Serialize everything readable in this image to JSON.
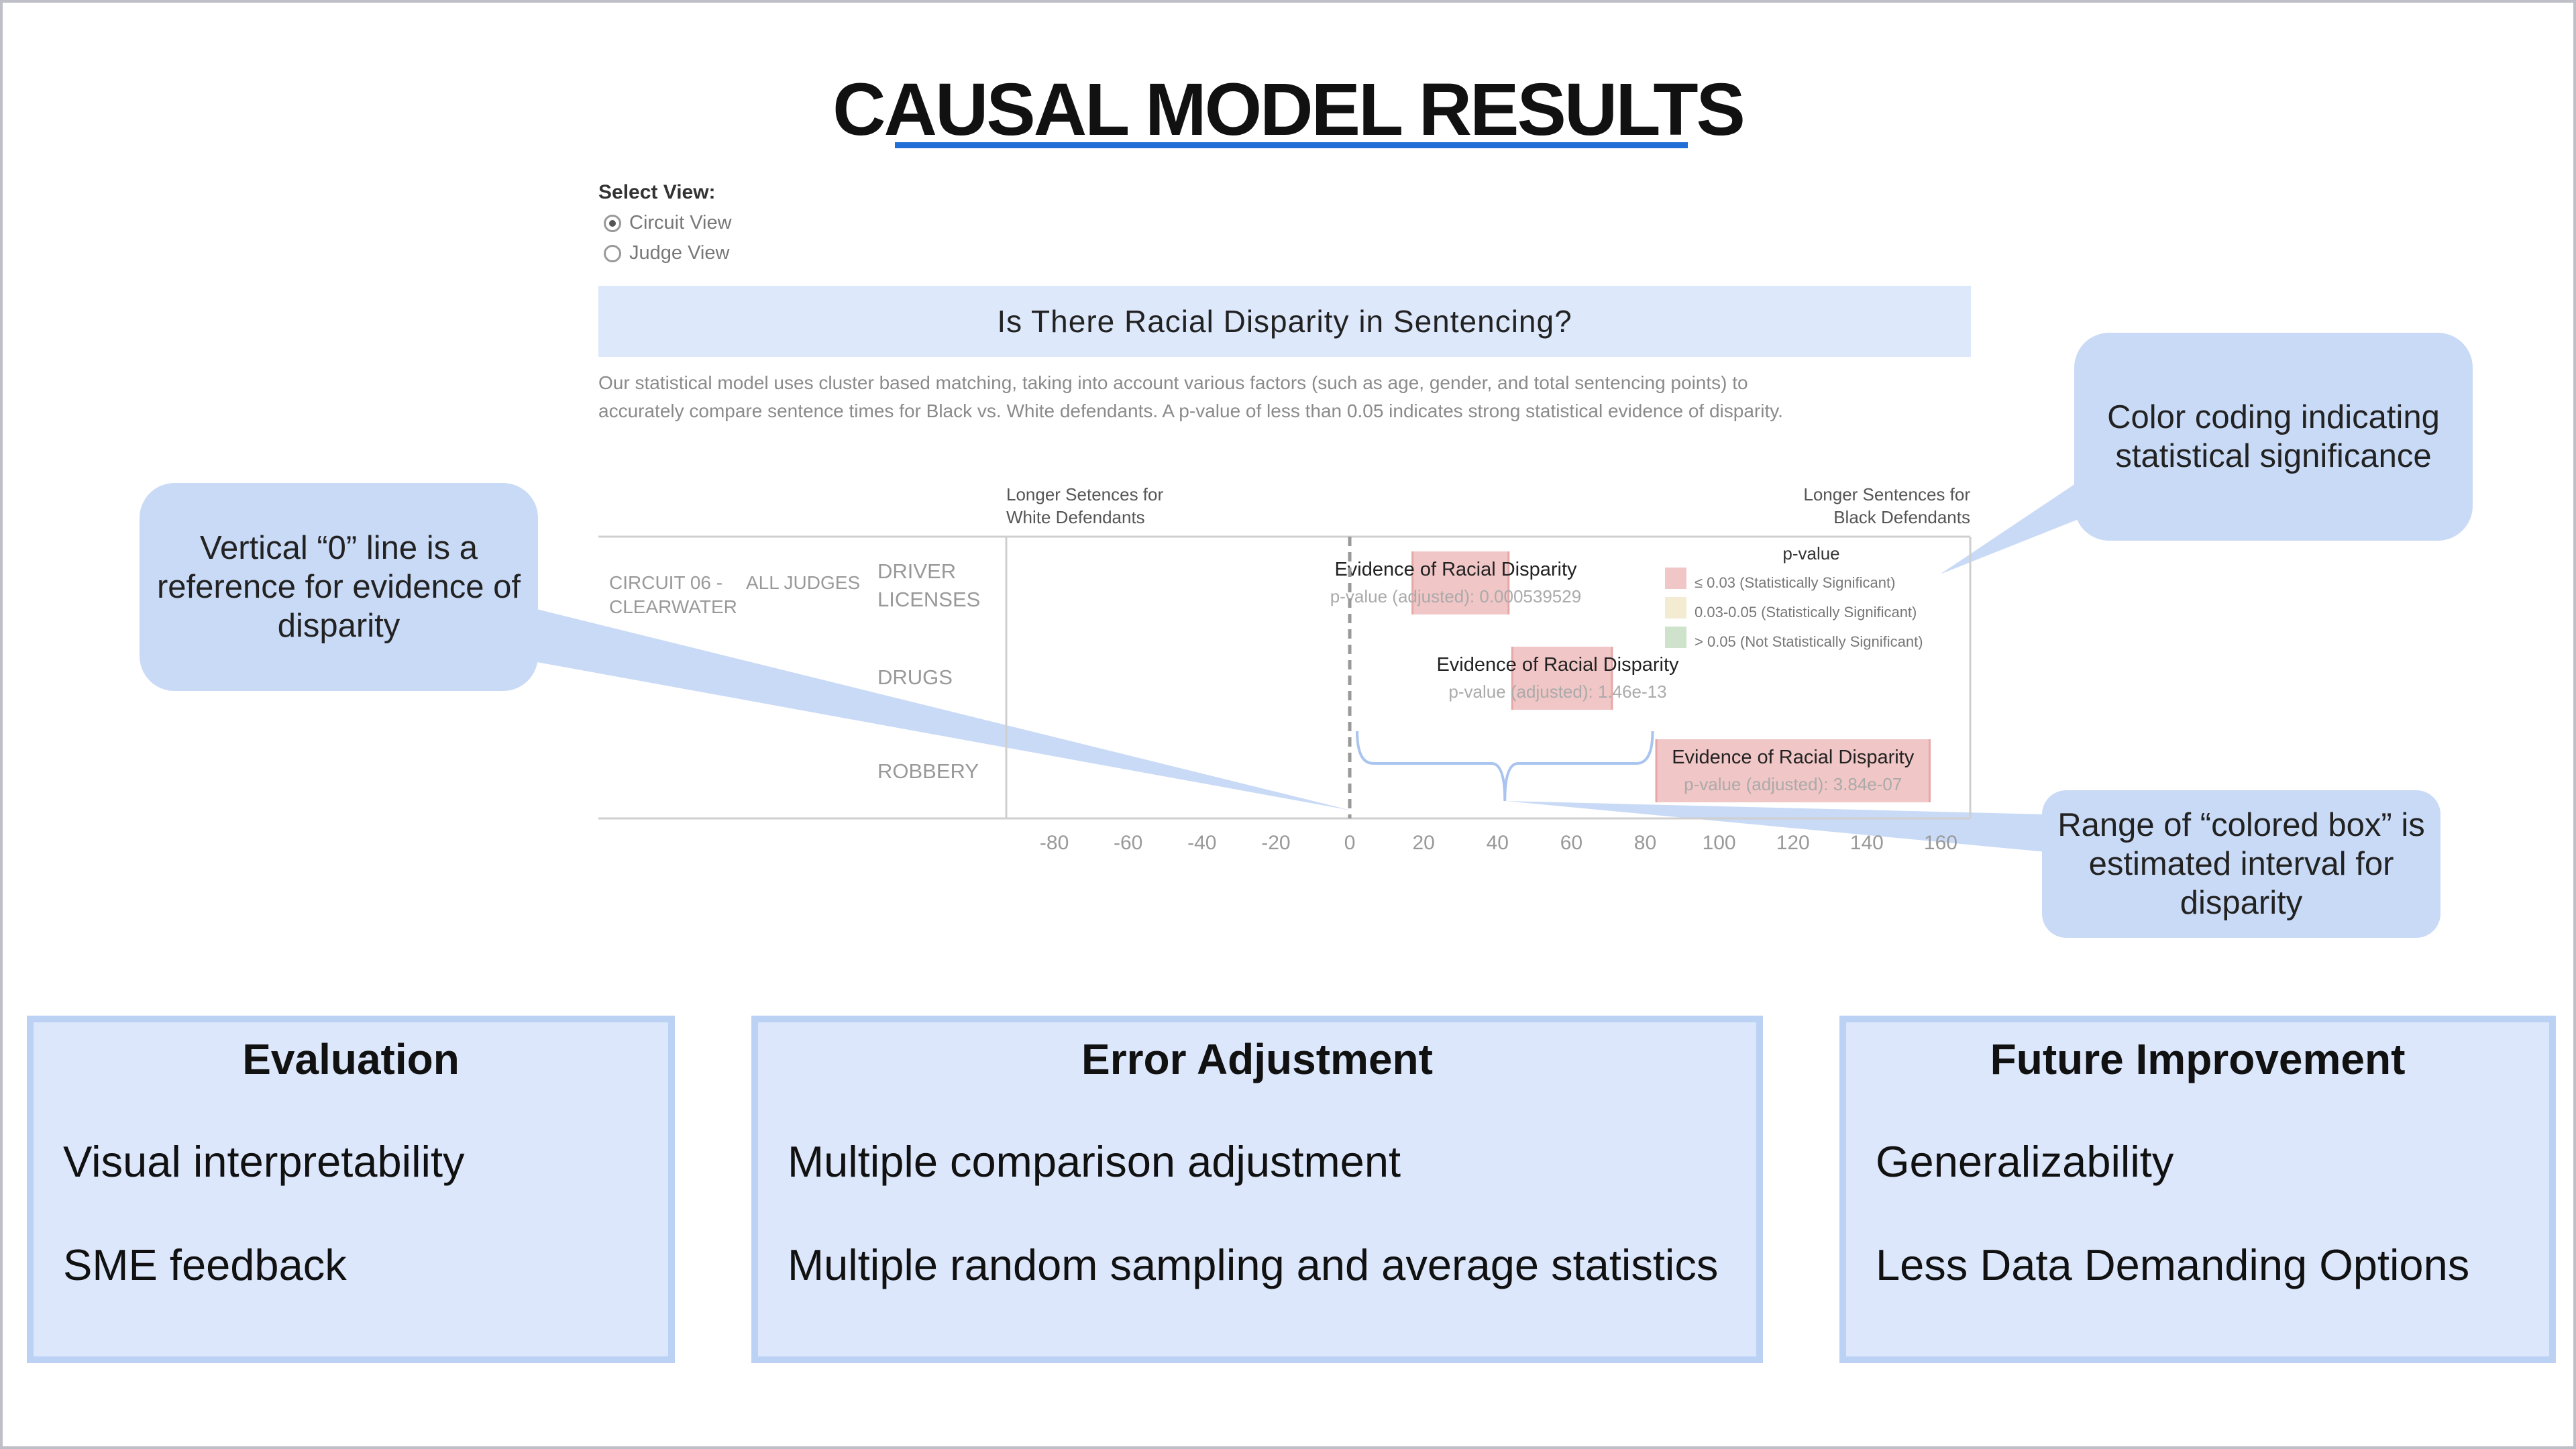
{
  "slide": {
    "title": "CAUSAL MODEL RESULTS"
  },
  "view_selector": {
    "label": "Select View:",
    "options": [
      {
        "label": "Circuit View",
        "selected": true
      },
      {
        "label": "Judge View",
        "selected": false
      }
    ]
  },
  "banner": {
    "text": "Is There Racial Disparity in Sentencing?"
  },
  "description": {
    "line1": "Our statistical model uses cluster based matching, taking into account various factors (such as age, gender, and total sentencing points) to",
    "line2": "accurately compare sentence times for Black vs. White defendants. A p-value of less than 0.05 indicates strong statistical evidence of disparity."
  },
  "callouts": {
    "zero_line": "Vertical “0” line is a reference for evidence of disparity",
    "color_coding": "Color coding indicating statistical significance",
    "range_box": "Range of “colored box” is estimated interval for disparity"
  },
  "chart_data": {
    "type": "interval",
    "header_left": [
      "Longer Setences for",
      "White Defendants"
    ],
    "header_right": [
      "Longer Sentences for",
      "Black Defendants"
    ],
    "row_header": {
      "circuit": [
        "CIRCUIT 06 -",
        "CLEARWATER"
      ],
      "judge": "ALL JUDGES"
    },
    "x_ticks": [
      -80,
      -60,
      -40,
      -20,
      0,
      20,
      40,
      60,
      80,
      100,
      120,
      140,
      160
    ],
    "xlim": [
      -93,
      168
    ],
    "reference_line": 0,
    "legend": {
      "title": "p-value",
      "items": [
        {
          "label": "≤ 0.03 (Statistically Significant)",
          "color": "#f1c6c6"
        },
        {
          "label": "0.03-0.05 (Statistically Significant)",
          "color": "#f3ecd2"
        },
        {
          "label": "> 0.05 (Not Statistically Significant)",
          "color": "#cfe3cc"
        }
      ]
    },
    "rows": [
      {
        "category": [
          "DRIVER",
          "LICENSES"
        ],
        "low": 17,
        "high": 43,
        "label": "Evidence of Racial Disparity",
        "pvalue": "p-value (adjusted): 0.000539529",
        "color": "#f1c6c6"
      },
      {
        "category": [
          "DRUGS"
        ],
        "low": 44,
        "high": 71,
        "label": "Evidence of Racial Disparity",
        "pvalue": "p-value (adjusted): 1.46e-13",
        "color": "#f1c6c6"
      },
      {
        "category": [
          "ROBBERY"
        ],
        "low": 83,
        "high": 157,
        "label": "Evidence of Racial Disparity",
        "pvalue": "p-value (adjusted): 3.84e-07",
        "color": "#f1c6c6"
      }
    ]
  },
  "cards": [
    {
      "title": "Evaluation",
      "items": [
        "Visual interpretability",
        "SME feedback"
      ]
    },
    {
      "title": "Error Adjustment",
      "items": [
        "Multiple comparison adjustment",
        "Multiple random sampling and average statistics"
      ]
    },
    {
      "title": "Future Improvement",
      "items": [
        "Generalizability",
        "Less Data Demanding Options"
      ]
    }
  ]
}
